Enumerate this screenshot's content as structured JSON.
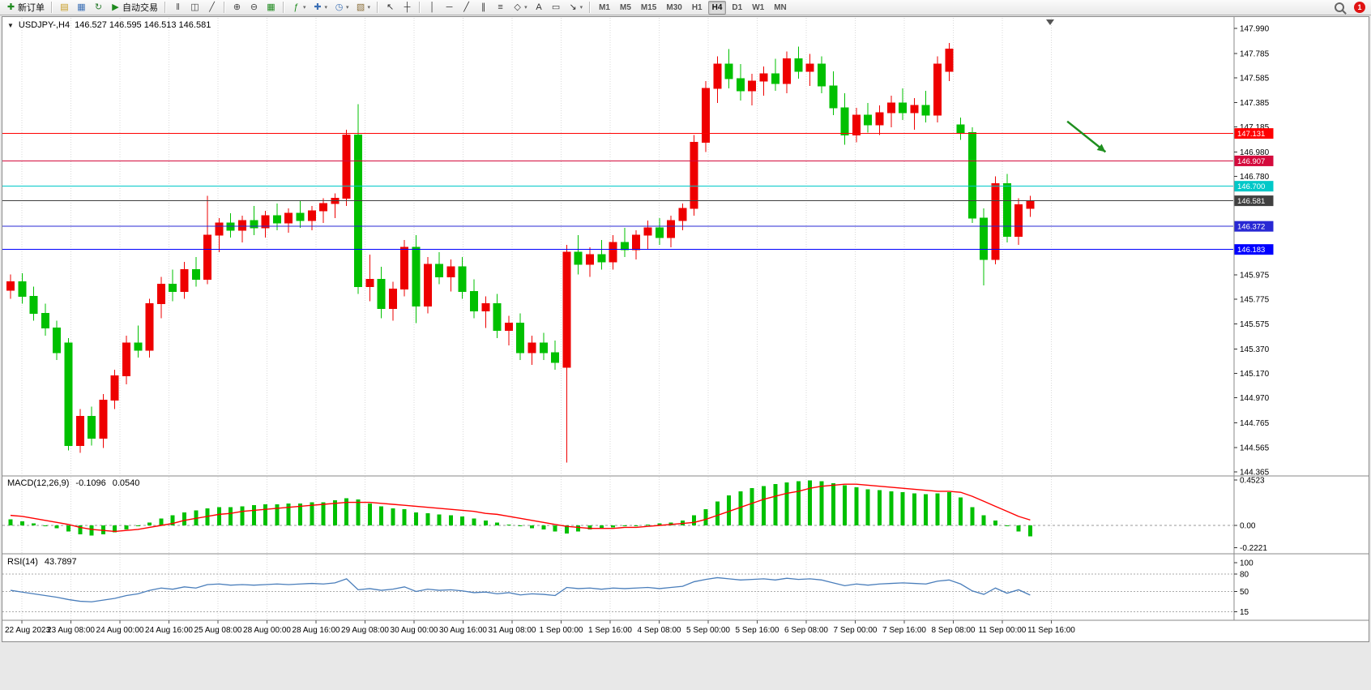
{
  "toolbar": {
    "items": [
      {
        "type": "btn",
        "name": "new-order-button",
        "icon": "new-order-icon",
        "glyph": "✚",
        "color": "#1e8a1e",
        "label": "新订单"
      },
      {
        "type": "sep"
      },
      {
        "type": "btn",
        "name": "market-watch-button",
        "icon": "market-watch-icon",
        "glyph": "▤",
        "color": "#c89b1e"
      },
      {
        "type": "btn",
        "name": "data-window-button",
        "icon": "data-window-icon",
        "glyph": "▦",
        "color": "#3b6fb5"
      },
      {
        "type": "btn",
        "name": "refresh-button",
        "icon": "refresh-icon",
        "glyph": "↻",
        "color": "#2e7d32"
      },
      {
        "type": "btn",
        "name": "auto-trading-button",
        "icon": "auto-trading-icon",
        "glyph": "▶",
        "color": "#1e8a1e",
        "label": "自动交易"
      },
      {
        "type": "sep"
      },
      {
        "type": "btn",
        "name": "bar-chart-button",
        "icon": "bar-chart-icon",
        "glyph": "‖",
        "color": "#444444"
      },
      {
        "type": "btn",
        "name": "candlestick-chart-button",
        "icon": "candlestick-icon",
        "glyph": "◫",
        "color": "#444444"
      },
      {
        "type": "btn",
        "name": "line-chart-button",
        "icon": "line-chart-icon",
        "glyph": "╱",
        "color": "#444444"
      },
      {
        "type": "sep"
      },
      {
        "type": "btn",
        "name": "zoom-in-button",
        "icon": "zoom-in-icon",
        "glyph": "⊕",
        "color": "#444444"
      },
      {
        "type": "btn",
        "name": "zoom-out-button",
        "icon": "zoom-out-icon",
        "glyph": "⊖",
        "color": "#444444"
      },
      {
        "type": "btn",
        "name": "tile-windows-button",
        "icon": "tile-windows-icon",
        "glyph": "▦",
        "color": "#1e8a1e"
      },
      {
        "type": "sep"
      },
      {
        "type": "btn",
        "name": "indicators-button",
        "icon": "indicators-icon",
        "glyph": "ƒ",
        "color": "#1e8a1e",
        "dropdown": true
      },
      {
        "type": "btn",
        "name": "add-indicator-button",
        "icon": "add-indicator-icon",
        "glyph": "✚",
        "color": "#3b6fb5",
        "dropdown": true
      },
      {
        "type": "btn",
        "name": "periods-button",
        "icon": "clock-icon",
        "glyph": "◷",
        "color": "#3b6fb5",
        "dropdown": true
      },
      {
        "type": "btn",
        "name": "templates-button",
        "icon": "template-icon",
        "glyph": "▧",
        "color": "#8b6f3b",
        "dropdown": true
      },
      {
        "type": "sep"
      },
      {
        "type": "btn",
        "name": "cursor-button",
        "icon": "cursor-icon",
        "glyph": "↖",
        "color": "#333333"
      },
      {
        "type": "btn",
        "name": "crosshair-button",
        "icon": "crosshair-icon",
        "glyph": "┼",
        "color": "#333333"
      },
      {
        "type": "sep"
      },
      {
        "type": "btn",
        "name": "vertical-line-button",
        "icon": "vertical-line-icon",
        "glyph": "│",
        "color": "#333333"
      },
      {
        "type": "btn",
        "name": "horizontal-line-button",
        "icon": "horizontal-line-icon",
        "glyph": "─",
        "color": "#333333"
      },
      {
        "type": "btn",
        "name": "trendline-button",
        "icon": "trendline-icon",
        "glyph": "╱",
        "color": "#333333"
      },
      {
        "type": "btn",
        "name": "channel-button",
        "icon": "channel-icon",
        "glyph": "∥",
        "color": "#333333"
      },
      {
        "type": "btn",
        "name": "fibonacci-button",
        "icon": "fibonacci-icon",
        "glyph": "≡",
        "color": "#333333"
      },
      {
        "type": "btn",
        "name": "shapes-button",
        "icon": "shapes-icon",
        "glyph": "◇",
        "color": "#333333",
        "dropdown": true
      },
      {
        "type": "btn",
        "name": "text-button",
        "icon": "text-icon",
        "glyph": "A",
        "color": "#333333"
      },
      {
        "type": "btn",
        "name": "text-label-button",
        "icon": "text-label-icon",
        "glyph": "▭",
        "color": "#333333"
      },
      {
        "type": "btn",
        "name": "arrows-button",
        "icon": "arrow-icon",
        "glyph": "↘",
        "color": "#333333",
        "dropdown": true
      },
      {
        "type": "sep"
      }
    ],
    "timeframes": [
      "M1",
      "M5",
      "M15",
      "M30",
      "H1",
      "H4",
      "D1",
      "W1",
      "MN"
    ],
    "active_timeframe": "H4",
    "notification_count": "1"
  },
  "chart": {
    "title": {
      "dropdown_icon": "▼",
      "symbol_period": "USDJPY-,H4",
      "ohlc": "146.527 146.595 146.513 146.581"
    },
    "price_axis_ticks": [
      "147.990",
      "147.785",
      "147.585",
      "147.385",
      "147.185",
      "146.980",
      "146.780",
      "145.975",
      "145.775",
      "145.575",
      "145.370",
      "145.170",
      "144.970",
      "144.765",
      "144.565",
      "144.365"
    ],
    "time_labels": [
      "22 Aug 2023",
      "23 Aug 08:00",
      "24 Aug 00:00",
      "24 Aug 16:00",
      "25 Aug 08:00",
      "28 Aug 00:00",
      "28 Aug 16:00",
      "29 Aug 08:00",
      "30 Aug 00:00",
      "30 Aug 16:00",
      "31 Aug 08:00",
      "1 Sep 00:00",
      "1 Sep 16:00",
      "4 Sep 08:00",
      "5 Sep 00:00",
      "5 Sep 16:00",
      "6 Sep 08:00",
      "7 Sep 00:00",
      "7 Sep 16:00",
      "8 Sep 08:00",
      "11 Sep 00:00",
      "11 Sep 16:00"
    ],
    "macd": {
      "title": "MACD(12,26,9)",
      "value_main": "-0.1096",
      "value_signal": "0.0540",
      "axis_labels": [
        "0.4523",
        "0.00",
        "-0.2221"
      ]
    },
    "rsi": {
      "title": "RSI(14)",
      "value": "43.7897",
      "axis_labels": [
        "100",
        "80",
        "50",
        "15"
      ]
    }
  },
  "colors": {
    "grid": "#d9d9d9",
    "up": "#ee0000",
    "down": "#00c000",
    "macd_hist": "#00c000",
    "macd_signal": "#ff0000",
    "rsi_line": "#4a7ebb"
  },
  "chart_data": [
    {
      "type": "candlestick",
      "symbol": "USDJPY-",
      "timeframe": "H4",
      "ylim": [
        144.365,
        147.99
      ],
      "last_close": 146.581,
      "ohlc": [
        [
          145.85,
          145.98,
          145.78,
          145.92
        ],
        [
          145.92,
          145.99,
          145.74,
          145.8
        ],
        [
          145.8,
          145.88,
          145.6,
          145.66
        ],
        [
          145.66,
          145.74,
          145.48,
          145.54
        ],
        [
          145.54,
          145.6,
          145.28,
          145.34
        ],
        [
          145.42,
          145.46,
          144.54,
          144.58
        ],
        [
          144.58,
          144.88,
          144.52,
          144.82
        ],
        [
          144.82,
          144.9,
          144.58,
          144.64
        ],
        [
          144.64,
          145.0,
          144.56,
          144.95
        ],
        [
          144.95,
          145.2,
          144.88,
          145.15
        ],
        [
          145.15,
          145.48,
          145.08,
          145.42
        ],
        [
          145.42,
          145.56,
          145.3,
          145.36
        ],
        [
          145.36,
          145.78,
          145.3,
          145.74
        ],
        [
          145.74,
          145.96,
          145.62,
          145.9
        ],
        [
          145.9,
          146.02,
          145.76,
          145.84
        ],
        [
          145.84,
          146.08,
          145.78,
          146.02
        ],
        [
          146.02,
          146.12,
          145.88,
          145.94
        ],
        [
          145.94,
          146.62,
          145.9,
          146.3
        ],
        [
          146.3,
          146.44,
          146.16,
          146.4
        ],
        [
          146.4,
          146.48,
          146.28,
          146.34
        ],
        [
          146.34,
          146.46,
          146.24,
          146.42
        ],
        [
          146.42,
          146.54,
          146.3,
          146.36
        ],
        [
          146.36,
          146.5,
          146.28,
          146.46
        ],
        [
          146.46,
          146.56,
          146.34,
          146.4
        ],
        [
          146.4,
          146.52,
          146.32,
          146.48
        ],
        [
          146.48,
          146.58,
          146.36,
          146.42
        ],
        [
          146.42,
          146.54,
          146.34,
          146.5
        ],
        [
          146.5,
          146.6,
          146.4,
          146.56
        ],
        [
          146.56,
          146.64,
          146.44,
          146.6
        ],
        [
          146.6,
          147.16,
          146.54,
          147.12
        ],
        [
          147.12,
          147.37,
          145.82,
          145.88
        ],
        [
          145.88,
          146.14,
          145.76,
          145.94
        ],
        [
          145.94,
          146.04,
          145.62,
          145.7
        ],
        [
          145.7,
          145.92,
          145.6,
          145.86
        ],
        [
          145.86,
          146.26,
          145.8,
          146.2
        ],
        [
          146.2,
          146.3,
          145.58,
          145.72
        ],
        [
          145.72,
          146.12,
          145.66,
          146.06
        ],
        [
          146.06,
          146.16,
          145.9,
          145.96
        ],
        [
          145.96,
          146.1,
          145.84,
          146.04
        ],
        [
          146.04,
          146.12,
          145.78,
          145.84
        ],
        [
          145.84,
          145.94,
          145.62,
          145.68
        ],
        [
          145.68,
          145.8,
          145.54,
          145.74
        ],
        [
          145.74,
          145.82,
          145.46,
          145.52
        ],
        [
          145.52,
          145.64,
          145.4,
          145.58
        ],
        [
          145.58,
          145.66,
          145.28,
          145.34
        ],
        [
          145.34,
          145.48,
          145.24,
          145.42
        ],
        [
          145.42,
          145.5,
          145.28,
          145.34
        ],
        [
          145.34,
          145.44,
          145.2,
          145.26
        ],
        [
          145.22,
          146.22,
          144.44,
          146.16
        ],
        [
          146.16,
          146.3,
          145.98,
          146.06
        ],
        [
          146.06,
          146.2,
          145.96,
          146.14
        ],
        [
          146.14,
          146.26,
          146.02,
          146.08
        ],
        [
          146.08,
          146.3,
          146.02,
          146.24
        ],
        [
          146.24,
          146.36,
          146.12,
          146.18
        ],
        [
          146.18,
          146.34,
          146.1,
          146.3
        ],
        [
          146.3,
          146.42,
          146.18,
          146.36
        ],
        [
          146.36,
          146.44,
          146.22,
          146.28
        ],
        [
          146.28,
          146.46,
          146.2,
          146.42
        ],
        [
          146.42,
          146.56,
          146.34,
          146.52
        ],
        [
          146.52,
          147.12,
          146.46,
          147.06
        ],
        [
          147.06,
          147.56,
          146.98,
          147.5
        ],
        [
          147.5,
          147.76,
          147.38,
          147.7
        ],
        [
          147.7,
          147.82,
          147.5,
          147.58
        ],
        [
          147.58,
          147.7,
          147.4,
          147.48
        ],
        [
          147.48,
          147.62,
          147.36,
          147.56
        ],
        [
          147.56,
          147.68,
          147.44,
          147.62
        ],
        [
          147.62,
          147.74,
          147.48,
          147.54
        ],
        [
          147.54,
          147.8,
          147.46,
          147.74
        ],
        [
          147.74,
          147.84,
          147.58,
          147.64
        ],
        [
          147.64,
          147.78,
          147.52,
          147.7
        ],
        [
          147.7,
          147.76,
          147.46,
          147.52
        ],
        [
          147.52,
          147.64,
          147.28,
          147.34
        ],
        [
          147.34,
          147.46,
          147.04,
          147.12
        ],
        [
          147.12,
          147.34,
          147.06,
          147.28
        ],
        [
          147.28,
          147.38,
          147.14,
          147.2
        ],
        [
          147.2,
          147.36,
          147.12,
          147.3
        ],
        [
          147.3,
          147.44,
          147.18,
          147.38
        ],
        [
          147.38,
          147.5,
          147.24,
          147.3
        ],
        [
          147.3,
          147.42,
          147.16,
          147.36
        ],
        [
          147.36,
          147.48,
          147.22,
          147.28
        ],
        [
          147.28,
          147.76,
          147.22,
          147.7
        ],
        [
          147.64,
          147.87,
          147.56,
          147.82
        ],
        [
          147.2,
          147.26,
          147.08,
          147.14
        ],
        [
          147.14,
          147.18,
          146.4,
          146.44
        ],
        [
          146.44,
          146.52,
          145.89,
          146.1
        ],
        [
          146.1,
          146.78,
          146.06,
          146.72
        ],
        [
          146.72,
          146.8,
          146.24,
          146.29
        ],
        [
          146.29,
          146.6,
          146.22,
          146.55
        ],
        [
          146.52,
          146.62,
          146.45,
          146.581
        ]
      ],
      "hlines": [
        {
          "value": 147.131,
          "label": "147.131",
          "color": "#ff0000"
        },
        {
          "value": 146.907,
          "label": "146.907",
          "color": "#d40a3c"
        },
        {
          "value": 146.7,
          "label": "146.700",
          "color": "#00c8c8"
        },
        {
          "value": 146.581,
          "label": "146.581",
          "color": "#404040",
          "role": "current-price"
        },
        {
          "value": 146.372,
          "label": "146.372",
          "color": "#2828d4"
        },
        {
          "value": 146.183,
          "label": "146.183",
          "color": "#0000ff"
        }
      ],
      "annotations": [
        {
          "type": "arrow",
          "color": "#1f8f1f",
          "from": {
            "bar": 91.2,
            "price": 147.23
          },
          "to": {
            "bar": 94.5,
            "price": 146.98
          }
        }
      ]
    },
    {
      "type": "bar",
      "name": "MACD histogram",
      "ylim": [
        -0.2221,
        0.4523
      ],
      "values": [
        0.06,
        0.04,
        0.02,
        0.0,
        -0.03,
        -0.06,
        -0.09,
        -0.1,
        -0.09,
        -0.07,
        -0.04,
        -0.01,
        0.03,
        0.07,
        0.1,
        0.13,
        0.15,
        0.17,
        0.18,
        0.18,
        0.19,
        0.2,
        0.21,
        0.21,
        0.22,
        0.22,
        0.23,
        0.23,
        0.25,
        0.27,
        0.26,
        0.22,
        0.19,
        0.17,
        0.16,
        0.13,
        0.12,
        0.11,
        0.1,
        0.09,
        0.07,
        0.05,
        0.03,
        0.01,
        -0.01,
        -0.03,
        -0.04,
        -0.06,
        -0.08,
        -0.06,
        -0.04,
        -0.03,
        -0.02,
        -0.01,
        0.0,
        0.01,
        0.02,
        0.03,
        0.05,
        0.1,
        0.16,
        0.24,
        0.3,
        0.34,
        0.37,
        0.39,
        0.41,
        0.43,
        0.44,
        0.45,
        0.44,
        0.42,
        0.4,
        0.38,
        0.36,
        0.35,
        0.34,
        0.33,
        0.32,
        0.31,
        0.32,
        0.33,
        0.28,
        0.18,
        0.1,
        0.05,
        0.0,
        -0.06,
        -0.1096
      ]
    },
    {
      "type": "line",
      "name": "MACD signal",
      "color": "#ff0000",
      "values": [
        0.1,
        0.09,
        0.07,
        0.05,
        0.03,
        0.01,
        -0.02,
        -0.04,
        -0.05,
        -0.06,
        -0.05,
        -0.04,
        -0.02,
        0.0,
        0.02,
        0.05,
        0.07,
        0.09,
        0.11,
        0.12,
        0.14,
        0.15,
        0.16,
        0.17,
        0.18,
        0.19,
        0.2,
        0.21,
        0.22,
        0.23,
        0.23,
        0.23,
        0.22,
        0.21,
        0.2,
        0.19,
        0.18,
        0.17,
        0.16,
        0.15,
        0.14,
        0.12,
        0.11,
        0.09,
        0.07,
        0.05,
        0.03,
        0.01,
        -0.01,
        -0.02,
        -0.03,
        -0.03,
        -0.03,
        -0.02,
        -0.02,
        -0.01,
        0.0,
        0.01,
        0.02,
        0.03,
        0.06,
        0.1,
        0.14,
        0.18,
        0.22,
        0.26,
        0.29,
        0.32,
        0.34,
        0.37,
        0.39,
        0.4,
        0.41,
        0.41,
        0.4,
        0.39,
        0.38,
        0.37,
        0.36,
        0.35,
        0.34,
        0.34,
        0.33,
        0.29,
        0.24,
        0.19,
        0.14,
        0.09,
        0.054
      ]
    },
    {
      "type": "line",
      "name": "RSI(14)",
      "color": "#4a7ebb",
      "ylim": [
        0,
        100
      ],
      "levels": [
        80,
        50,
        15
      ],
      "values": [
        52,
        49,
        46,
        43,
        40,
        36,
        33,
        32,
        35,
        38,
        43,
        46,
        52,
        56,
        54,
        58,
        56,
        62,
        63,
        61,
        62,
        61,
        62,
        63,
        62,
        63,
        64,
        63,
        65,
        72,
        53,
        55,
        52,
        54,
        58,
        50,
        54,
        52,
        53,
        51,
        48,
        49,
        46,
        48,
        44,
        46,
        45,
        43,
        57,
        55,
        56,
        54,
        56,
        55,
        56,
        57,
        55,
        57,
        59,
        67,
        71,
        74,
        72,
        70,
        71,
        72,
        70,
        73,
        71,
        72,
        70,
        65,
        60,
        63,
        61,
        63,
        64,
        65,
        64,
        63,
        68,
        70,
        63,
        51,
        45,
        56,
        47,
        53,
        43.79
      ]
    }
  ]
}
